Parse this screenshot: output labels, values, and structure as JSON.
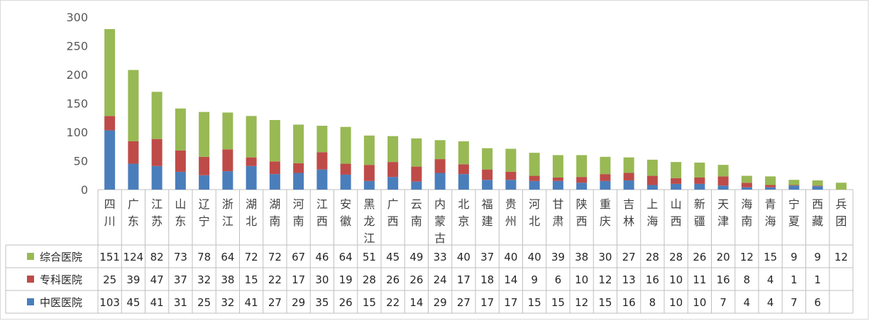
{
  "chart_data": {
    "type": "bar",
    "stacked": true,
    "title": "",
    "xlabel": "",
    "ylabel": "",
    "ylim": [
      0,
      300
    ],
    "yticks": [
      "0",
      "50",
      "100",
      "150",
      "200",
      "250",
      "300"
    ],
    "grid": false,
    "legend": "table-left",
    "categories": [
      "四川",
      "广东",
      "江苏",
      "山东",
      "辽宁",
      "浙江",
      "湖北",
      "湖南",
      "河南",
      "江西",
      "安徽",
      "黑龙江",
      "广西",
      "云南",
      "内蒙古",
      "北京",
      "福建",
      "贵州",
      "河北",
      "甘肃",
      "陕西",
      "重庆",
      "吉林",
      "上海",
      "山西",
      "新疆",
      "天津",
      "海南",
      "青海",
      "宁夏",
      "西藏",
      "兵团"
    ],
    "series": [
      {
        "name": "中医医院",
        "color": "#4a7ebb",
        "values": [
          103,
          45,
          41,
          31,
          25,
          32,
          41,
          27,
          29,
          35,
          26,
          15,
          22,
          14,
          29,
          27,
          17,
          17,
          15,
          15,
          12,
          15,
          16,
          8,
          10,
          10,
          7,
          4,
          4,
          7,
          6,
          null
        ]
      },
      {
        "name": "专科医院",
        "color": "#be4b48",
        "values": [
          25,
          39,
          47,
          37,
          32,
          38,
          15,
          22,
          17,
          30,
          19,
          28,
          26,
          26,
          24,
          17,
          18,
          14,
          9,
          6,
          10,
          12,
          13,
          16,
          10,
          11,
          16,
          8,
          4,
          1,
          1,
          null
        ]
      },
      {
        "name": "综合医院",
        "color": "#98b954",
        "values": [
          151,
          124,
          82,
          73,
          78,
          64,
          72,
          72,
          67,
          46,
          64,
          51,
          45,
          49,
          33,
          40,
          37,
          40,
          40,
          39,
          38,
          30,
          27,
          28,
          28,
          26,
          20,
          12,
          15,
          9,
          9,
          12
        ]
      }
    ]
  }
}
